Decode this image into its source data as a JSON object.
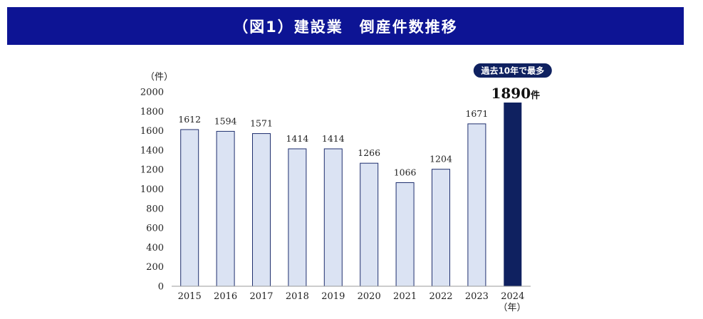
{
  "title": "（図1）建設業　倒産件数推移",
  "chart_data": {
    "type": "bar",
    "categories": [
      "2015",
      "2016",
      "2017",
      "2018",
      "2019",
      "2020",
      "2021",
      "2022",
      "2023",
      "2024"
    ],
    "values": [
      1612,
      1594,
      1571,
      1414,
      1414,
      1266,
      1066,
      1204,
      1671,
      1890
    ],
    "data_labels": [
      "1612",
      "1594",
      "1571",
      "1414",
      "1414",
      "1266",
      "1066",
      "1204",
      "1671",
      "1890件"
    ],
    "ylabel": "（件）",
    "xlabel": "（年）",
    "ylim": [
      0,
      2000
    ],
    "yticks": [
      0,
      200,
      400,
      600,
      800,
      1000,
      1200,
      1400,
      1600,
      1800,
      2000
    ],
    "grid": false,
    "colors": {
      "bar": "#dbe3f3",
      "bar_edge": "#1f2f6e",
      "highlight": "#0f2160",
      "axis": "#999999"
    },
    "highlight_index": 9,
    "annotation": "過去10年で最多"
  }
}
